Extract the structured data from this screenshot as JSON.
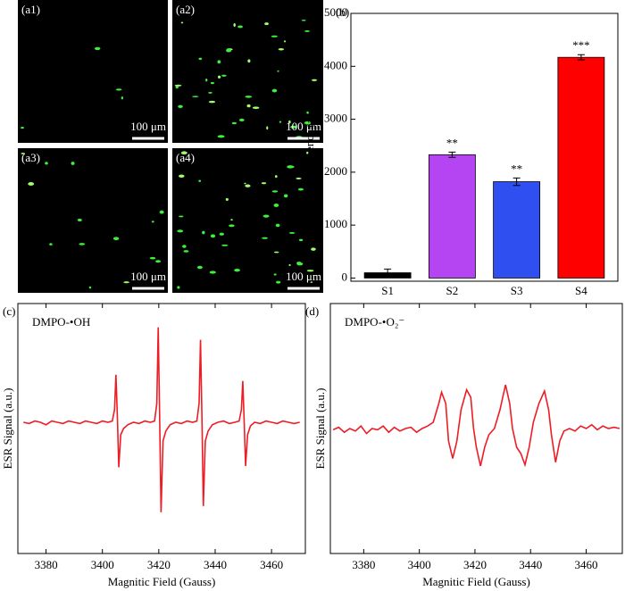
{
  "micrographs": [
    {
      "label": "(a1)",
      "scale_bar": "100 μm"
    },
    {
      "label": "(a2)",
      "scale_bar": "100 μm"
    },
    {
      "label": "(a3)",
      "scale_bar": "100 μm"
    },
    {
      "label": "(a4)",
      "scale_bar": "100 μm"
    }
  ],
  "chart_data": [
    {
      "type": "bar",
      "label": "(b)",
      "y_label": "Fluorescence (a.u.)",
      "categories": [
        "S1",
        "S2",
        "S3",
        "S4"
      ],
      "values": [
        100,
        2330,
        1820,
        4170
      ],
      "errors": [
        70,
        50,
        70,
        50
      ],
      "colors": [
        "#000000",
        "#b545f2",
        "#2f4ff0",
        "#ff0000"
      ],
      "annotations": [
        null,
        "**",
        "**",
        "***"
      ],
      "ylim": [
        -60,
        5000
      ],
      "yticks": [
        0,
        1000,
        2000,
        3000,
        4000,
        5000
      ]
    },
    {
      "type": "line",
      "label": "(c)",
      "title": "DMPO-•OH",
      "x_label": "Magnitic Field (Gauss)",
      "y_label": "ESR Signal (a.u.)",
      "color": "#ee1c24",
      "xlim": [
        3370,
        3472
      ],
      "ylim": [
        -1,
        1
      ],
      "xticks": [
        3380,
        3400,
        3420,
        3440,
        3460
      ],
      "x": [
        3372,
        3374,
        3376,
        3378,
        3380,
        3382,
        3384,
        3386,
        3388,
        3390,
        3392,
        3394,
        3396,
        3398,
        3400,
        3402,
        3403.5,
        3404.3,
        3404.8,
        3405.3,
        3405.8,
        3406.5,
        3407.5,
        3409,
        3411,
        3413,
        3415,
        3417,
        3418.5,
        3419.3,
        3419.8,
        3420.3,
        3420.8,
        3421.5,
        3422.5,
        3424,
        3426,
        3428,
        3430,
        3432,
        3433.5,
        3434.3,
        3434.8,
        3435.3,
        3435.8,
        3436.5,
        3437.5,
        3439,
        3441,
        3443,
        3445,
        3447,
        3448.5,
        3449.3,
        3449.8,
        3450.3,
        3450.8,
        3451.5,
        3452.5,
        3454,
        3456,
        3458,
        3460,
        3462,
        3464,
        3466,
        3468,
        3470
      ],
      "values": [
        0.05,
        0.04,
        0.06,
        0.05,
        0.03,
        0.06,
        0.05,
        0.04,
        0.06,
        0.05,
        0.04,
        0.06,
        0.05,
        0.04,
        0.06,
        0.05,
        0.06,
        0.15,
        0.43,
        0.1,
        -0.31,
        -0.05,
        0,
        0.03,
        0.05,
        0.04,
        0.06,
        0.05,
        0.06,
        0.2,
        0.81,
        0.1,
        -0.67,
        -0.1,
        -0.02,
        0.03,
        0.05,
        0.04,
        0.06,
        0.05,
        0.06,
        0.2,
        0.71,
        0.1,
        -0.62,
        -0.1,
        -0.02,
        0.03,
        0.05,
        0.06,
        0.04,
        0.05,
        0.06,
        0.15,
        0.38,
        0.05,
        -0.3,
        -0.05,
        0.02,
        0.05,
        0.04,
        0.06,
        0.05,
        0.04,
        0.06,
        0.05,
        0.04,
        0.05
      ]
    },
    {
      "type": "line",
      "label": "(d)",
      "title": "DMPO-•O₂⁻",
      "x_label": "Magnitic Field (Gauss)",
      "y_label": "ESR Signal (a.u.)",
      "color": "#ee1c24",
      "xlim": [
        3368,
        3473
      ],
      "ylim": [
        -1,
        1
      ],
      "xticks": [
        3380,
        3400,
        3420,
        3440,
        3460
      ],
      "x": [
        3369,
        3371,
        3373,
        3375,
        3377,
        3379,
        3381,
        3383,
        3385,
        3387,
        3389,
        3391,
        3393,
        3395,
        3397,
        3399,
        3401,
        3403,
        3405,
        3407,
        3408,
        3409.5,
        3410.5,
        3412,
        3413.5,
        3415,
        3417,
        3418.5,
        3419.5,
        3420.5,
        3422,
        3423.5,
        3425,
        3427,
        3429,
        3431,
        3432.5,
        3433.5,
        3435,
        3436.5,
        3438,
        3439.5,
        3441,
        3443,
        3445,
        3446.5,
        3447.5,
        3449,
        3450.5,
        3452,
        3454,
        3456,
        3458,
        3460,
        3462,
        3464,
        3466,
        3468,
        3470,
        3472
      ],
      "values": [
        -0.01,
        0.01,
        -0.03,
        0,
        -0.02,
        0.02,
        -0.04,
        0,
        -0.01,
        0.02,
        -0.03,
        0.01,
        -0.02,
        0,
        0.01,
        -0.03,
        0,
        0.02,
        0.05,
        0.2,
        0.29,
        0.2,
        -0.1,
        -0.24,
        -0.1,
        0.15,
        0.31,
        0.25,
        0,
        -0.15,
        -0.3,
        -0.15,
        -0.05,
        0,
        0.15,
        0.35,
        0.2,
        0,
        -0.15,
        -0.2,
        -0.29,
        -0.15,
        0.05,
        0.2,
        0.3,
        0.15,
        -0.05,
        -0.27,
        -0.1,
        -0.02,
        0,
        -0.02,
        0.02,
        0,
        0.03,
        -0.01,
        0.02,
        0,
        0.01,
        0
      ]
    }
  ]
}
